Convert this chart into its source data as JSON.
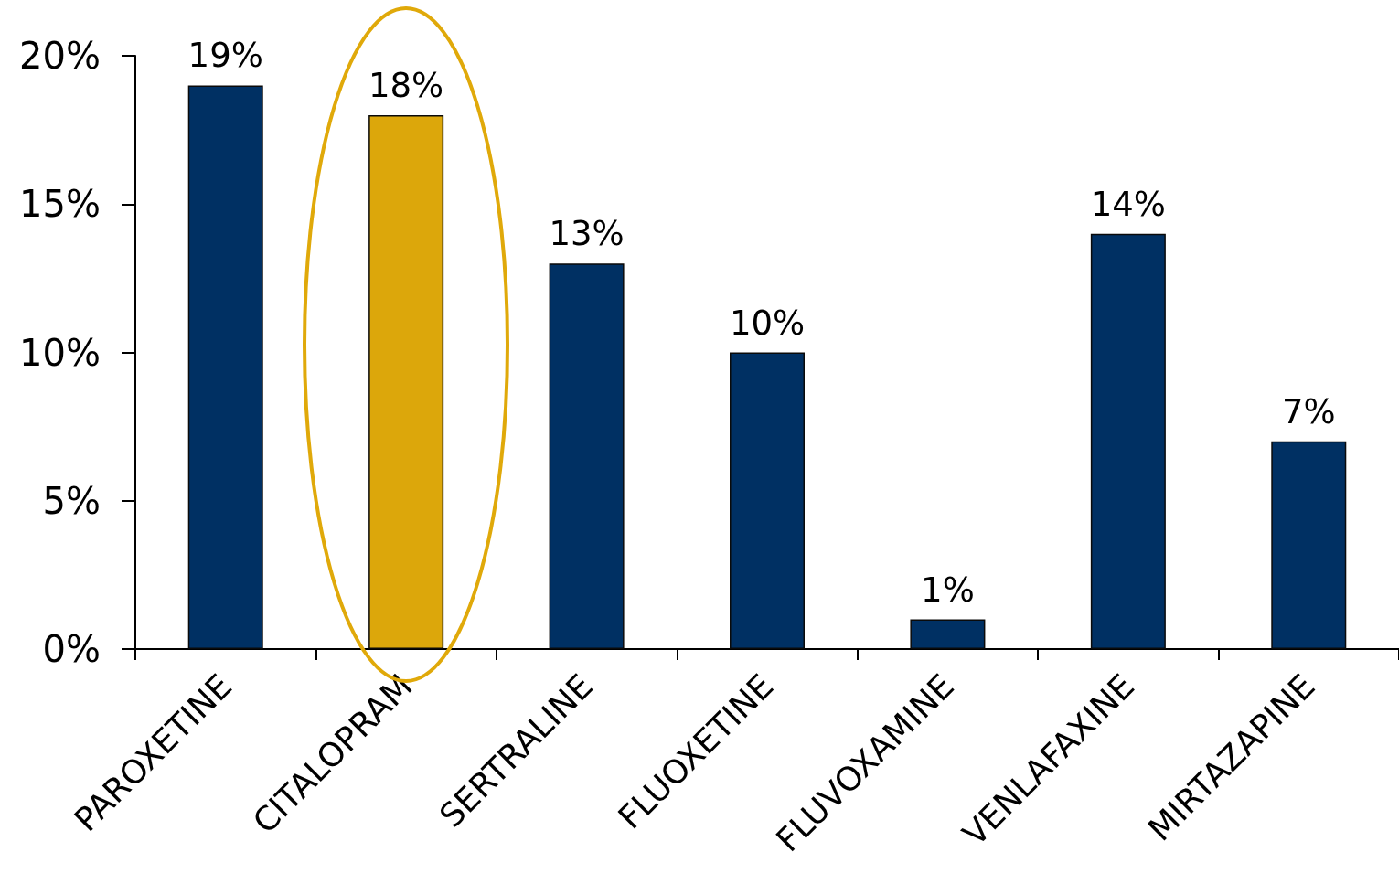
{
  "chart_data": {
    "type": "bar",
    "categories": [
      "PAROXETINE",
      "CITALOPRAM",
      "SERTRALINE",
      "FLUOXETINE",
      "FLUVOXAMINE",
      "VENLAFAXINE",
      "MIRTAZAPINE"
    ],
    "values": [
      19,
      18,
      13,
      10,
      1,
      14,
      7
    ],
    "colors": [
      "#003063",
      "#dca70b",
      "#003063",
      "#003063",
      "#003063",
      "#003063",
      "#003063"
    ],
    "value_labels": [
      "19%",
      "18%",
      "13%",
      "10%",
      "1%",
      "14%",
      "7%"
    ],
    "ylim": [
      0,
      20
    ],
    "yticks": [
      {
        "value": 0,
        "label": "0%"
      },
      {
        "value": 5,
        "label": "5%"
      },
      {
        "value": 10,
        "label": "10%"
      },
      {
        "value": 15,
        "label": "15%"
      },
      {
        "value": 20,
        "label": "20%"
      }
    ]
  }
}
